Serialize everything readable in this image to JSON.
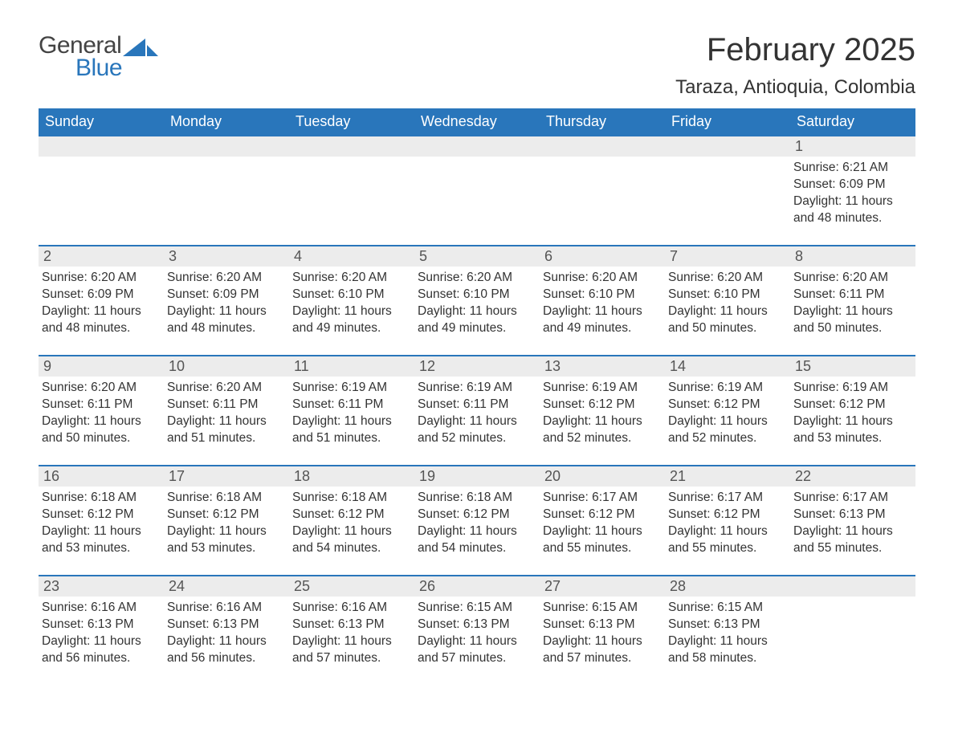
{
  "brand": {
    "word1": "General",
    "word2": "Blue",
    "accent_color": "#2976bb"
  },
  "title": "February 2025",
  "location": "Taraza, Antioquia, Colombia",
  "colors": {
    "header_bg": "#2976bb",
    "header_text": "#ffffff",
    "daynum_bg": "#ececec",
    "rule": "#2976bb",
    "text": "#333333",
    "bg": "#ffffff"
  },
  "layout": {
    "columns": 7,
    "rows": 5
  },
  "weekdays": [
    "Sunday",
    "Monday",
    "Tuesday",
    "Wednesday",
    "Thursday",
    "Friday",
    "Saturday"
  ],
  "weeks": [
    [
      null,
      null,
      null,
      null,
      null,
      null,
      {
        "n": "1",
        "sunrise": "Sunrise: 6:21 AM",
        "sunset": "Sunset: 6:09 PM",
        "day1": "Daylight: 11 hours",
        "day2": "and 48 minutes."
      }
    ],
    [
      {
        "n": "2",
        "sunrise": "Sunrise: 6:20 AM",
        "sunset": "Sunset: 6:09 PM",
        "day1": "Daylight: 11 hours",
        "day2": "and 48 minutes."
      },
      {
        "n": "3",
        "sunrise": "Sunrise: 6:20 AM",
        "sunset": "Sunset: 6:09 PM",
        "day1": "Daylight: 11 hours",
        "day2": "and 48 minutes."
      },
      {
        "n": "4",
        "sunrise": "Sunrise: 6:20 AM",
        "sunset": "Sunset: 6:10 PM",
        "day1": "Daylight: 11 hours",
        "day2": "and 49 minutes."
      },
      {
        "n": "5",
        "sunrise": "Sunrise: 6:20 AM",
        "sunset": "Sunset: 6:10 PM",
        "day1": "Daylight: 11 hours",
        "day2": "and 49 minutes."
      },
      {
        "n": "6",
        "sunrise": "Sunrise: 6:20 AM",
        "sunset": "Sunset: 6:10 PM",
        "day1": "Daylight: 11 hours",
        "day2": "and 49 minutes."
      },
      {
        "n": "7",
        "sunrise": "Sunrise: 6:20 AM",
        "sunset": "Sunset: 6:10 PM",
        "day1": "Daylight: 11 hours",
        "day2": "and 50 minutes."
      },
      {
        "n": "8",
        "sunrise": "Sunrise: 6:20 AM",
        "sunset": "Sunset: 6:11 PM",
        "day1": "Daylight: 11 hours",
        "day2": "and 50 minutes."
      }
    ],
    [
      {
        "n": "9",
        "sunrise": "Sunrise: 6:20 AM",
        "sunset": "Sunset: 6:11 PM",
        "day1": "Daylight: 11 hours",
        "day2": "and 50 minutes."
      },
      {
        "n": "10",
        "sunrise": "Sunrise: 6:20 AM",
        "sunset": "Sunset: 6:11 PM",
        "day1": "Daylight: 11 hours",
        "day2": "and 51 minutes."
      },
      {
        "n": "11",
        "sunrise": "Sunrise: 6:19 AM",
        "sunset": "Sunset: 6:11 PM",
        "day1": "Daylight: 11 hours",
        "day2": "and 51 minutes."
      },
      {
        "n": "12",
        "sunrise": "Sunrise: 6:19 AM",
        "sunset": "Sunset: 6:11 PM",
        "day1": "Daylight: 11 hours",
        "day2": "and 52 minutes."
      },
      {
        "n": "13",
        "sunrise": "Sunrise: 6:19 AM",
        "sunset": "Sunset: 6:12 PM",
        "day1": "Daylight: 11 hours",
        "day2": "and 52 minutes."
      },
      {
        "n": "14",
        "sunrise": "Sunrise: 6:19 AM",
        "sunset": "Sunset: 6:12 PM",
        "day1": "Daylight: 11 hours",
        "day2": "and 52 minutes."
      },
      {
        "n": "15",
        "sunrise": "Sunrise: 6:19 AM",
        "sunset": "Sunset: 6:12 PM",
        "day1": "Daylight: 11 hours",
        "day2": "and 53 minutes."
      }
    ],
    [
      {
        "n": "16",
        "sunrise": "Sunrise: 6:18 AM",
        "sunset": "Sunset: 6:12 PM",
        "day1": "Daylight: 11 hours",
        "day2": "and 53 minutes."
      },
      {
        "n": "17",
        "sunrise": "Sunrise: 6:18 AM",
        "sunset": "Sunset: 6:12 PM",
        "day1": "Daylight: 11 hours",
        "day2": "and 53 minutes."
      },
      {
        "n": "18",
        "sunrise": "Sunrise: 6:18 AM",
        "sunset": "Sunset: 6:12 PM",
        "day1": "Daylight: 11 hours",
        "day2": "and 54 minutes."
      },
      {
        "n": "19",
        "sunrise": "Sunrise: 6:18 AM",
        "sunset": "Sunset: 6:12 PM",
        "day1": "Daylight: 11 hours",
        "day2": "and 54 minutes."
      },
      {
        "n": "20",
        "sunrise": "Sunrise: 6:17 AM",
        "sunset": "Sunset: 6:12 PM",
        "day1": "Daylight: 11 hours",
        "day2": "and 55 minutes."
      },
      {
        "n": "21",
        "sunrise": "Sunrise: 6:17 AM",
        "sunset": "Sunset: 6:12 PM",
        "day1": "Daylight: 11 hours",
        "day2": "and 55 minutes."
      },
      {
        "n": "22",
        "sunrise": "Sunrise: 6:17 AM",
        "sunset": "Sunset: 6:13 PM",
        "day1": "Daylight: 11 hours",
        "day2": "and 55 minutes."
      }
    ],
    [
      {
        "n": "23",
        "sunrise": "Sunrise: 6:16 AM",
        "sunset": "Sunset: 6:13 PM",
        "day1": "Daylight: 11 hours",
        "day2": "and 56 minutes."
      },
      {
        "n": "24",
        "sunrise": "Sunrise: 6:16 AM",
        "sunset": "Sunset: 6:13 PM",
        "day1": "Daylight: 11 hours",
        "day2": "and 56 minutes."
      },
      {
        "n": "25",
        "sunrise": "Sunrise: 6:16 AM",
        "sunset": "Sunset: 6:13 PM",
        "day1": "Daylight: 11 hours",
        "day2": "and 57 minutes."
      },
      {
        "n": "26",
        "sunrise": "Sunrise: 6:15 AM",
        "sunset": "Sunset: 6:13 PM",
        "day1": "Daylight: 11 hours",
        "day2": "and 57 minutes."
      },
      {
        "n": "27",
        "sunrise": "Sunrise: 6:15 AM",
        "sunset": "Sunset: 6:13 PM",
        "day1": "Daylight: 11 hours",
        "day2": "and 57 minutes."
      },
      {
        "n": "28",
        "sunrise": "Sunrise: 6:15 AM",
        "sunset": "Sunset: 6:13 PM",
        "day1": "Daylight: 11 hours",
        "day2": "and 58 minutes."
      },
      null
    ]
  ]
}
